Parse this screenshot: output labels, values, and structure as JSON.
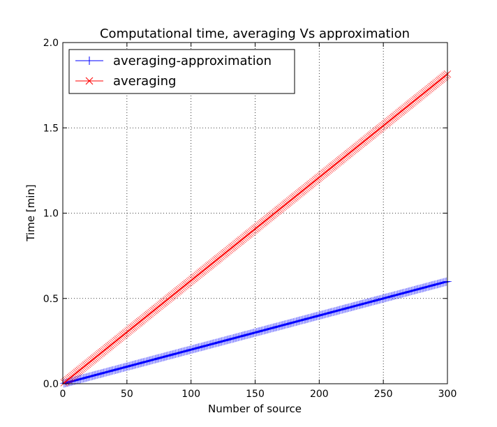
{
  "chart_data": {
    "type": "line",
    "title": "Computational time, averaging Vs approximation",
    "xlabel": "Number of source",
    "ylabel": "Time [min]",
    "xlim": [
      0,
      300
    ],
    "ylim": [
      0,
      2.0
    ],
    "x_ticks": [
      0,
      50,
      100,
      150,
      200,
      250,
      300
    ],
    "y_ticks": [
      0.0,
      0.5,
      1.0,
      1.5,
      2.0
    ],
    "x_tick_labels": [
      "0",
      "50",
      "100",
      "150",
      "200",
      "250",
      "300"
    ],
    "y_tick_labels": [
      "0.0",
      "0.5",
      "1.0",
      "1.5",
      "2.0"
    ],
    "grid": true,
    "legend_position": "top-left",
    "x_range": [
      1,
      300
    ],
    "series": [
      {
        "name": "averaging-approximation",
        "slope": 0.002,
        "color": "#0000ff",
        "marker": "plus"
      },
      {
        "name": "averaging",
        "slope": 0.00605,
        "color": "#ff0000",
        "marker": "x"
      }
    ]
  }
}
